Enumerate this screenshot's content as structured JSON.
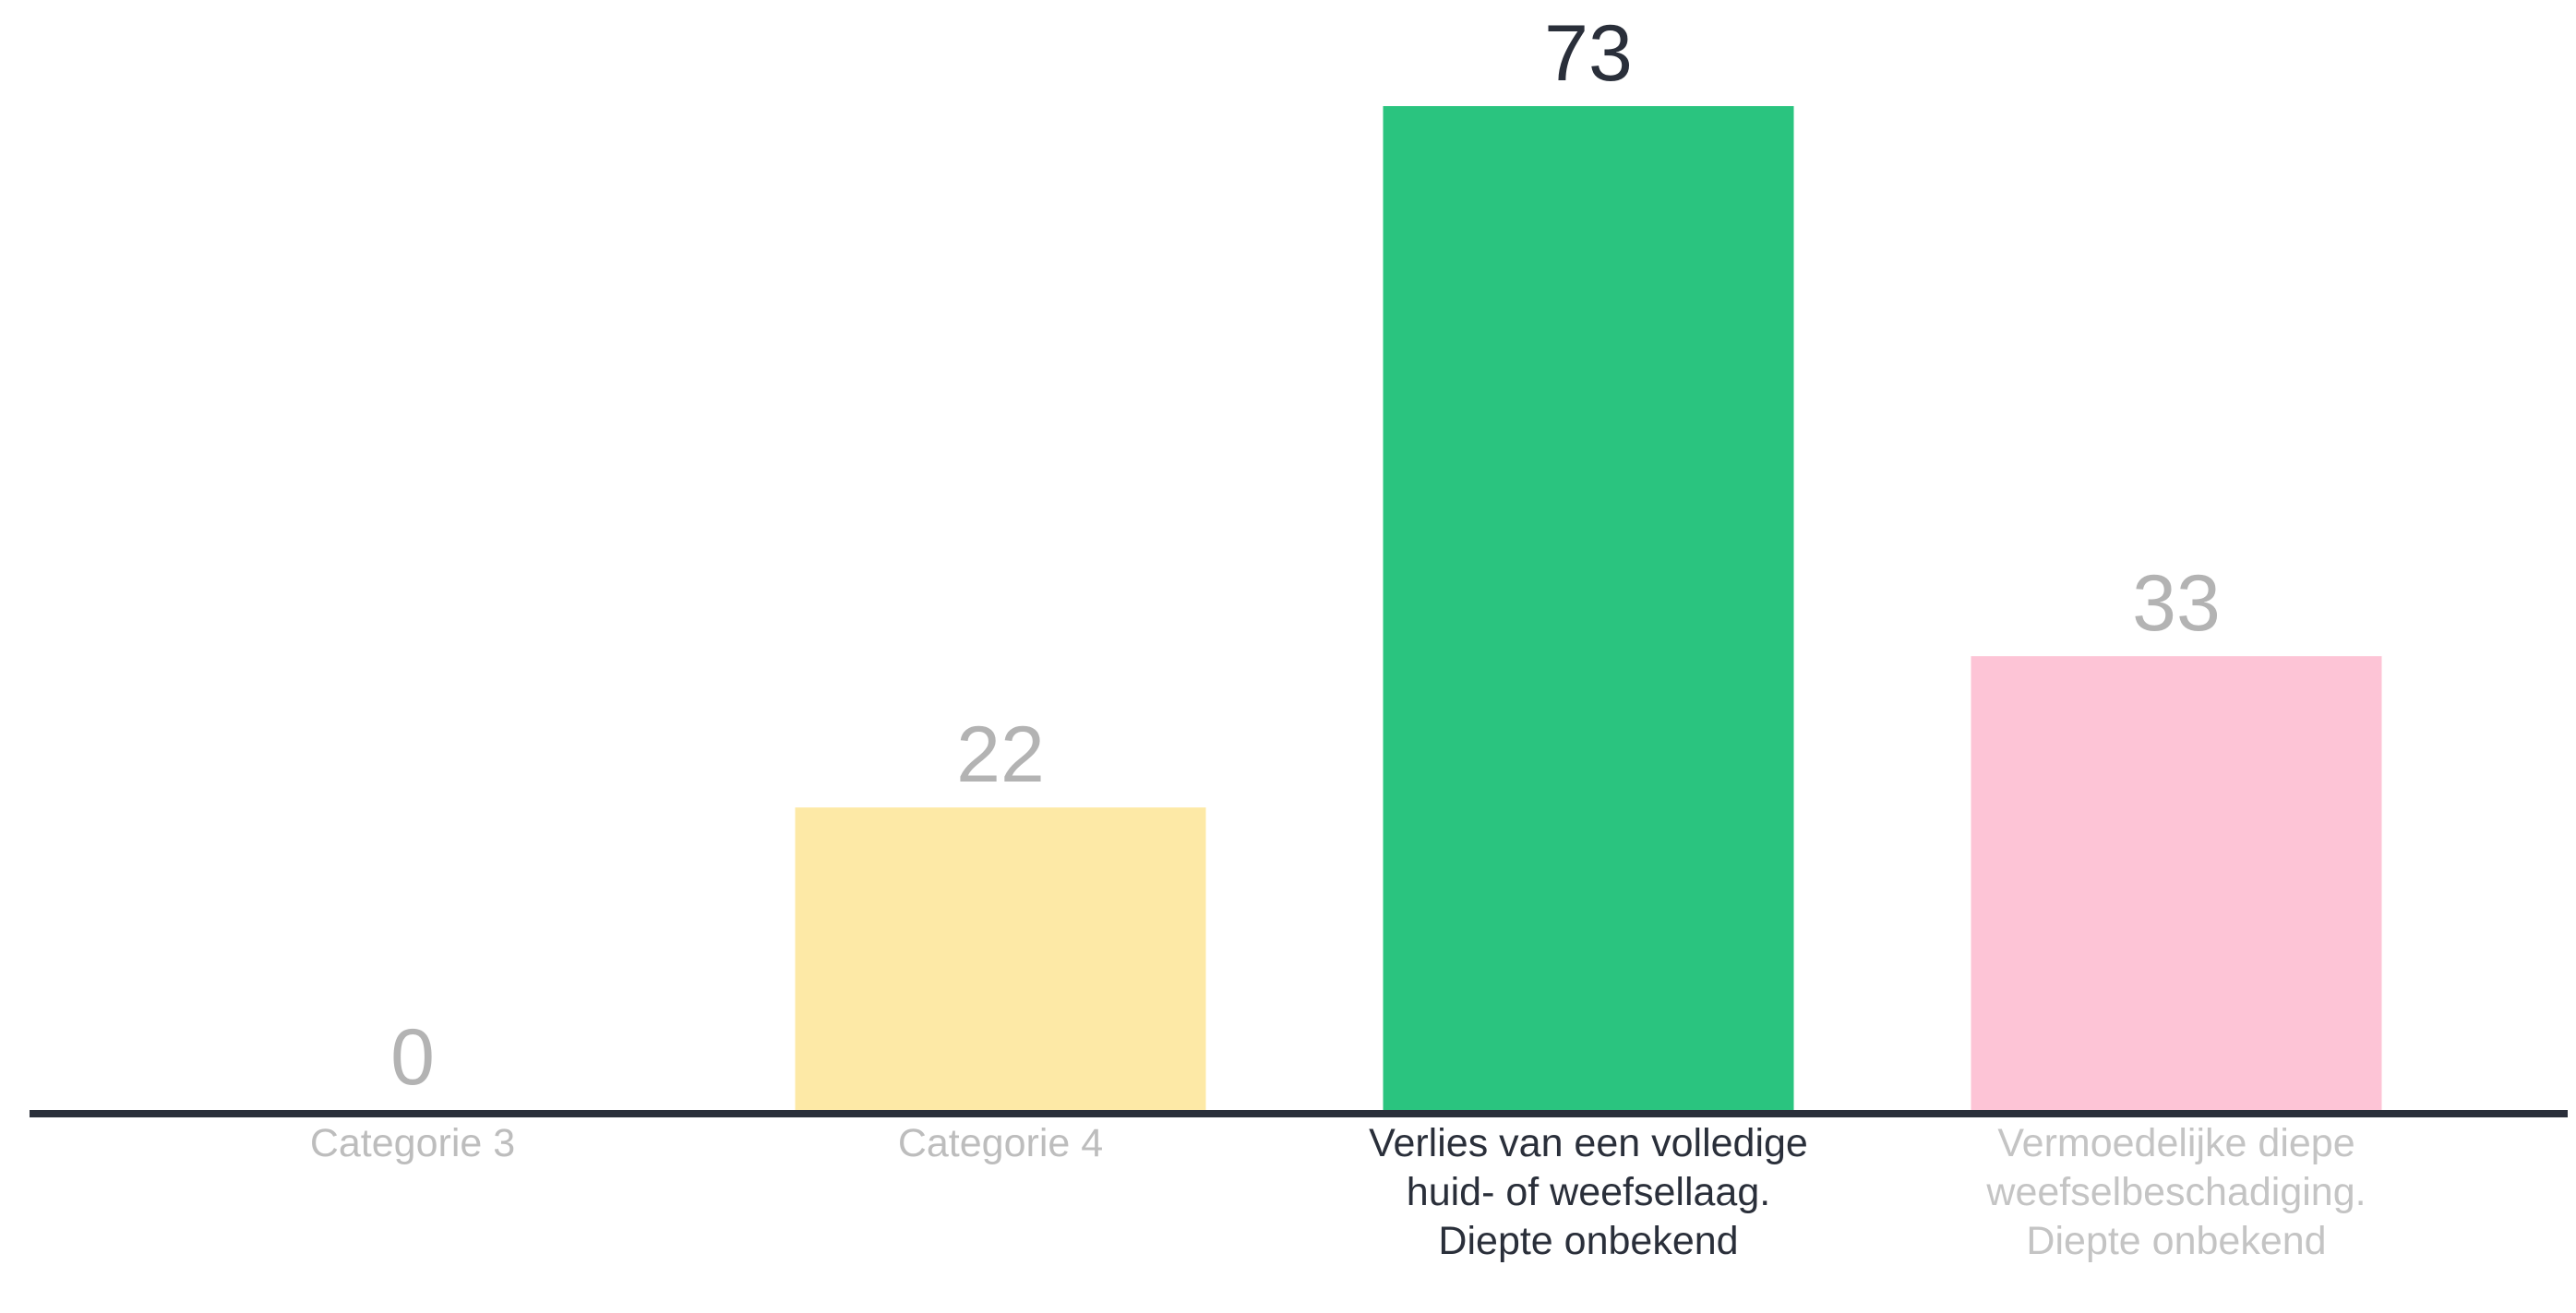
{
  "chart_data": {
    "type": "bar",
    "categories": [
      "Categorie 3",
      "Categorie 4",
      "Verlies van een volledige huid- of weefsellaag. Diepte onbekend",
      "Vermoedelijke diepe weefselbeschadiging. Diepte onbekend"
    ],
    "values": [
      0,
      22,
      73,
      33
    ],
    "value_labels": [
      "0",
      "22",
      "73",
      "33"
    ],
    "bar_colors": [
      "#ffffff",
      "#fde9a6",
      "#2ac47f",
      "#fdc4d6"
    ],
    "value_label_colors": [
      "#b3b3b3",
      "#b3b3b3",
      "#2a2f3a",
      "#b3b3b3"
    ],
    "category_label_colors": [
      "#bdbdbd",
      "#bdbdbd",
      "#2a2f3a",
      "#c4c4c4"
    ],
    "axis_color": "#2a2f3a",
    "ylim": [
      0,
      73
    ],
    "grid": false,
    "highlighted_category": "Verlies van een volledige huid- of weefsellaag. Diepte onbekend"
  }
}
